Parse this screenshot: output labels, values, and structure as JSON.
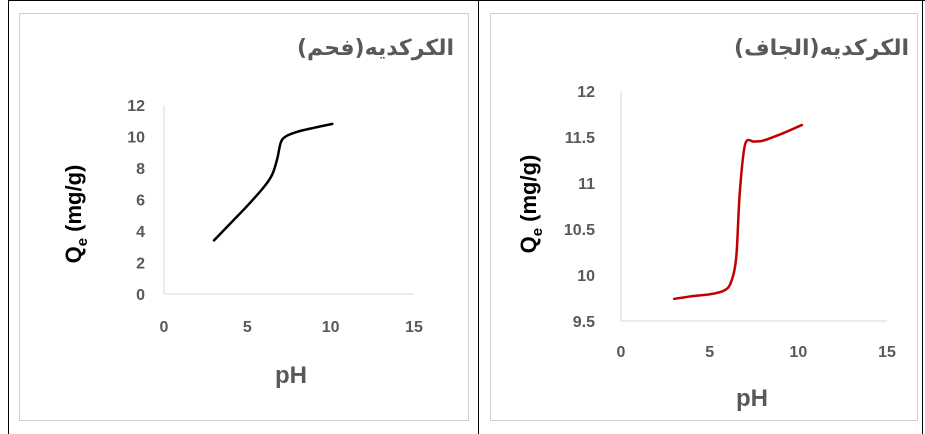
{
  "charts": [
    {
      "title": "الكركديه(فحم)",
      "line_color": "#000000",
      "chart_data": {
        "type": "line",
        "title": "الكركديه(فحم)",
        "xlabel": "pH",
        "ylabel_main": "Q",
        "ylabel_sub": "e",
        "ylabel_unit": "(mg/g)",
        "xlim": [
          0,
          15
        ],
        "ylim": [
          0,
          12
        ],
        "xticks": [
          "0",
          "5",
          "10",
          "15"
        ],
        "yticks": [
          "0",
          "2",
          "4",
          "6",
          "8",
          "10",
          "12"
        ],
        "grid": false,
        "series": [
          {
            "x": [
              3,
              4,
              5,
              6,
              6.5,
              6.8,
              7,
              7.3,
              8,
              9,
              10.1
            ],
            "y": [
              3.4,
              4.5,
              5.6,
              6.8,
              7.6,
              8.6,
              9.6,
              10.0,
              10.3,
              10.55,
              10.8
            ]
          }
        ]
      }
    },
    {
      "title": "الكركديه(الجاف)",
      "line_color": "#c00000",
      "chart_data": {
        "type": "line",
        "title": "الكركديه(الجاف)",
        "xlabel": "pH",
        "ylabel_main": "Q",
        "ylabel_sub": "e",
        "ylabel_unit": "(mg/g)",
        "xlim": [
          0,
          15
        ],
        "ylim": [
          9.5,
          12
        ],
        "xticks": [
          "0",
          "5",
          "10",
          "15"
        ],
        "yticks": [
          "9.5",
          "10",
          "10.5",
          "11",
          "11.5",
          "12"
        ],
        "grid": false,
        "series": [
          {
            "x": [
              3,
              4,
              5,
              5.8,
              6.2,
              6.5,
              6.7,
              7,
              7.5,
              8,
              9,
              10.2
            ],
            "y": [
              9.74,
              9.77,
              9.79,
              9.83,
              9.92,
              10.2,
              10.9,
              11.42,
              11.45,
              11.46,
              11.53,
              11.63
            ]
          }
        ]
      }
    }
  ]
}
